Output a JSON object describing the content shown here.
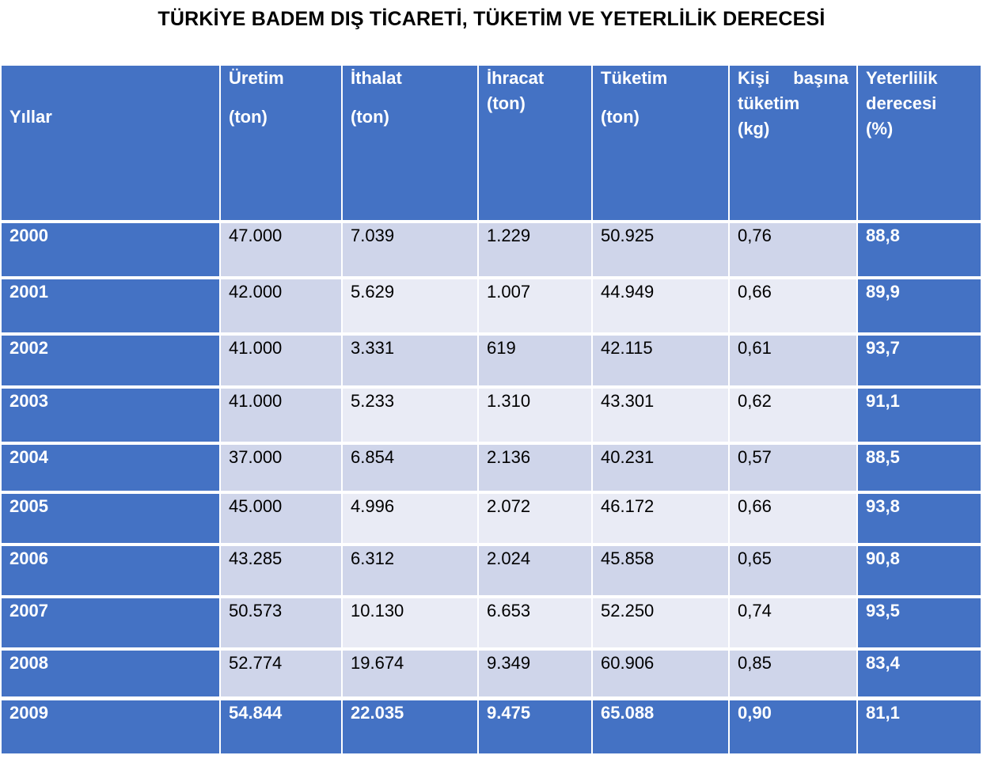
{
  "title": "TÜRKİYE BADEM DIŞ TİCARETİ, TÜKETİM VE YETERLİLİK DERECESİ",
  "colors": {
    "header_bg": "#4472c4",
    "row_band_dark": "#cfd5ea",
    "row_band_light": "#e9ebf5",
    "text_on_blue": "#ffffff"
  },
  "chart_data": {
    "type": "table",
    "title": "TÜRKİYE BADEM DIŞ TİCARETİ, TÜKETİM VE YETERLİLİK DERECESİ",
    "columns": [
      {
        "line1": "Yıllar",
        "line2": "",
        "line3": ""
      },
      {
        "line1": "Üretim",
        "line2": "(ton)",
        "line3": ""
      },
      {
        "line1": "İthalat",
        "line2": "(ton)",
        "line3": ""
      },
      {
        "line1": "İhracat",
        "line2": "(ton)",
        "line3": ""
      },
      {
        "line1": "Tüketim",
        "line2": "(ton)",
        "line3": ""
      },
      {
        "line1": "Kişi başına",
        "line2": "tüketim",
        "line3": "(kg)"
      },
      {
        "line1": "Yeterlilik",
        "line2": "derecesi",
        "line3": "(%)"
      }
    ],
    "rows": [
      [
        "2000",
        "47.000",
        "7.039",
        "1.229",
        "50.925",
        "0,76",
        "88,8"
      ],
      [
        "2001",
        "42.000",
        "5.629",
        "1.007",
        "44.949",
        "0,66",
        "89,9"
      ],
      [
        "2002",
        "41.000",
        "3.331",
        "619",
        "42.115",
        "0,61",
        "93,7"
      ],
      [
        "2003",
        "41.000",
        "5.233",
        "1.310",
        "43.301",
        "0,62",
        "91,1"
      ],
      [
        "2004",
        "37.000",
        "6.854",
        "2.136",
        "40.231",
        "0,57",
        "88,5"
      ],
      [
        "2005",
        "45.000",
        "4.996",
        "2.072",
        "46.172",
        "0,66",
        "93,8"
      ],
      [
        "2006",
        "43.285",
        "6.312",
        "2.024",
        "45.858",
        "0,65",
        "90,8"
      ],
      [
        "2007",
        "50.573",
        "10.130",
        "6.653",
        "52.250",
        "0,74",
        "93,5"
      ],
      [
        "2008",
        "52.774",
        "19.674",
        "9.349",
        "60.906",
        "0,85",
        "83,4"
      ],
      [
        "2009",
        "54.844",
        "22.035",
        "9.475",
        "65.088",
        "0,90",
        "81,1"
      ]
    ]
  }
}
